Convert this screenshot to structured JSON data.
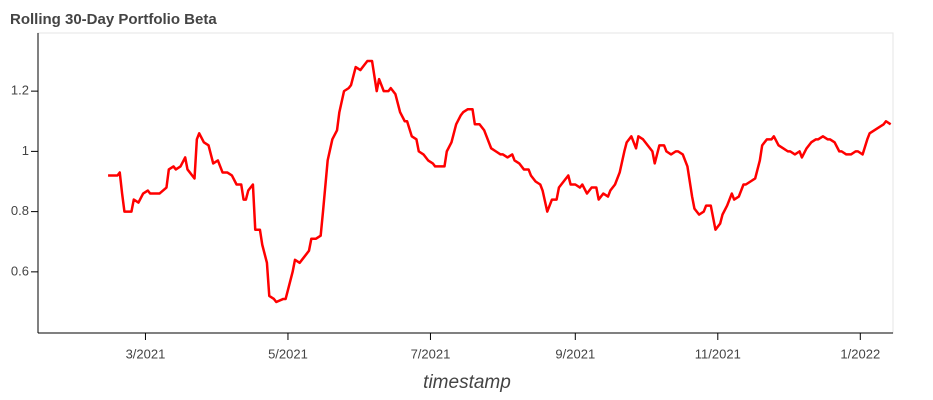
{
  "chart_data": {
    "type": "line",
    "title": "Rolling 30-Day Portfolio Beta",
    "x_label": "timestamp",
    "color": "#ff0000",
    "x": [
      43,
      45,
      47,
      48,
      49,
      50,
      53,
      54,
      56,
      58,
      60,
      61,
      63,
      65,
      68,
      69,
      71,
      72,
      74,
      76,
      77,
      80,
      81,
      82,
      84,
      86,
      88,
      90,
      92,
      94,
      96,
      98,
      100,
      101,
      102,
      103,
      105,
      106,
      108,
      109,
      111,
      112,
      114,
      115,
      118,
      119,
      120,
      122,
      123,
      125,
      127,
      129,
      130,
      132,
      134,
      135,
      137,
      139,
      141,
      142,
      144,
      146,
      147,
      149,
      151,
      153,
      154,
      156,
      158,
      159,
      161,
      163,
      164,
      166,
      168,
      170,
      171,
      173,
      175,
      176,
      178,
      180,
      182,
      183,
      185,
      187,
      188,
      190,
      192,
      194,
      195,
      197,
      199,
      200,
      202,
      204,
      205,
      207,
      209,
      211,
      212,
      214,
      216,
      217,
      219,
      221,
      223,
      224,
      226,
      228,
      229,
      231,
      233,
      235,
      236,
      238,
      240,
      241,
      243,
      245,
      246,
      248,
      250,
      252,
      253,
      255,
      257,
      258,
      260,
      262,
      264,
      265,
      267,
      269,
      270,
      272,
      274,
      276,
      277,
      279,
      281,
      282,
      284,
      286,
      287,
      289,
      291,
      293,
      294,
      296,
      298,
      299,
      301,
      303,
      305,
      306,
      308,
      310,
      311,
      313,
      315,
      316,
      318,
      320,
      322,
      323,
      325,
      327,
      328,
      330,
      332,
      334,
      335,
      337,
      339,
      340,
      342,
      344,
      346,
      347,
      349,
      351,
      352,
      354,
      356,
      357,
      359,
      361,
      363,
      364,
      366,
      368,
      369,
      371,
      373,
      375,
      376,
      378
    ],
    "values": [
      0.92,
      0.92,
      0.92,
      0.93,
      0.86,
      0.8,
      0.8,
      0.84,
      0.83,
      0.86,
      0.87,
      0.86,
      0.86,
      0.86,
      0.88,
      0.94,
      0.95,
      0.94,
      0.95,
      0.98,
      0.94,
      0.91,
      1.04,
      1.06,
      1.03,
      1.02,
      0.96,
      0.97,
      0.93,
      0.93,
      0.92,
      0.89,
      0.89,
      0.84,
      0.84,
      0.87,
      0.89,
      0.74,
      0.74,
      0.69,
      0.63,
      0.52,
      0.51,
      0.5,
      0.51,
      0.51,
      0.54,
      0.6,
      0.64,
      0.63,
      0.65,
      0.67,
      0.71,
      0.71,
      0.72,
      0.8,
      0.97,
      1.04,
      1.07,
      1.13,
      1.2,
      1.21,
      1.22,
      1.28,
      1.27,
      1.29,
      1.3,
      1.3,
      1.2,
      1.24,
      1.2,
      1.2,
      1.21,
      1.19,
      1.13,
      1.1,
      1.1,
      1.05,
      1.04,
      1.0,
      0.99,
      0.97,
      0.96,
      0.95,
      0.95,
      0.95,
      1.0,
      1.03,
      1.09,
      1.12,
      1.13,
      1.14,
      1.14,
      1.09,
      1.09,
      1.07,
      1.05,
      1.01,
      1.0,
      0.99,
      0.99,
      0.98,
      0.99,
      0.97,
      0.96,
      0.94,
      0.94,
      0.92,
      0.9,
      0.89,
      0.87,
      0.8,
      0.84,
      0.84,
      0.88,
      0.9,
      0.92,
      0.89,
      0.89,
      0.88,
      0.89,
      0.86,
      0.88,
      0.88,
      0.84,
      0.86,
      0.85,
      0.87,
      0.89,
      0.93,
      1.0,
      1.03,
      1.05,
      1.01,
      1.05,
      1.04,
      1.02,
      1.0,
      0.96,
      1.02,
      1.02,
      1.0,
      0.99,
      1.0,
      1.0,
      0.99,
      0.95,
      0.85,
      0.81,
      0.79,
      0.8,
      0.82,
      0.82,
      0.74,
      0.76,
      0.79,
      0.82,
      0.86,
      0.84,
      0.85,
      0.89,
      0.89,
      0.9,
      0.91,
      0.97,
      1.02,
      1.04,
      1.04,
      1.05,
      1.02,
      1.01,
      1.0,
      1.0,
      0.99,
      1.0,
      0.98,
      1.01,
      1.03,
      1.04,
      1.04,
      1.05,
      1.04,
      1.04,
      1.03,
      1.0,
      1.0,
      0.99,
      0.99,
      1.0,
      1.0,
      0.99,
      1.04,
      1.06,
      1.07,
      1.08,
      1.09,
      1.1,
      1.09
    ],
    "xlim": [
      13,
      379
    ],
    "xticks": [
      {
        "value": 59,
        "label": "3/2021"
      },
      {
        "value": 120,
        "label": "5/2021"
      },
      {
        "value": 181,
        "label": "7/2021"
      },
      {
        "value": 243,
        "label": "9/2021"
      },
      {
        "value": 304,
        "label": "11/2021"
      },
      {
        "value": 365,
        "label": "1/2022"
      }
    ],
    "ylim": [
      0.397,
      1.393
    ],
    "yticks": [
      0.6,
      0.8,
      1,
      1.2
    ],
    "grid": false
  }
}
